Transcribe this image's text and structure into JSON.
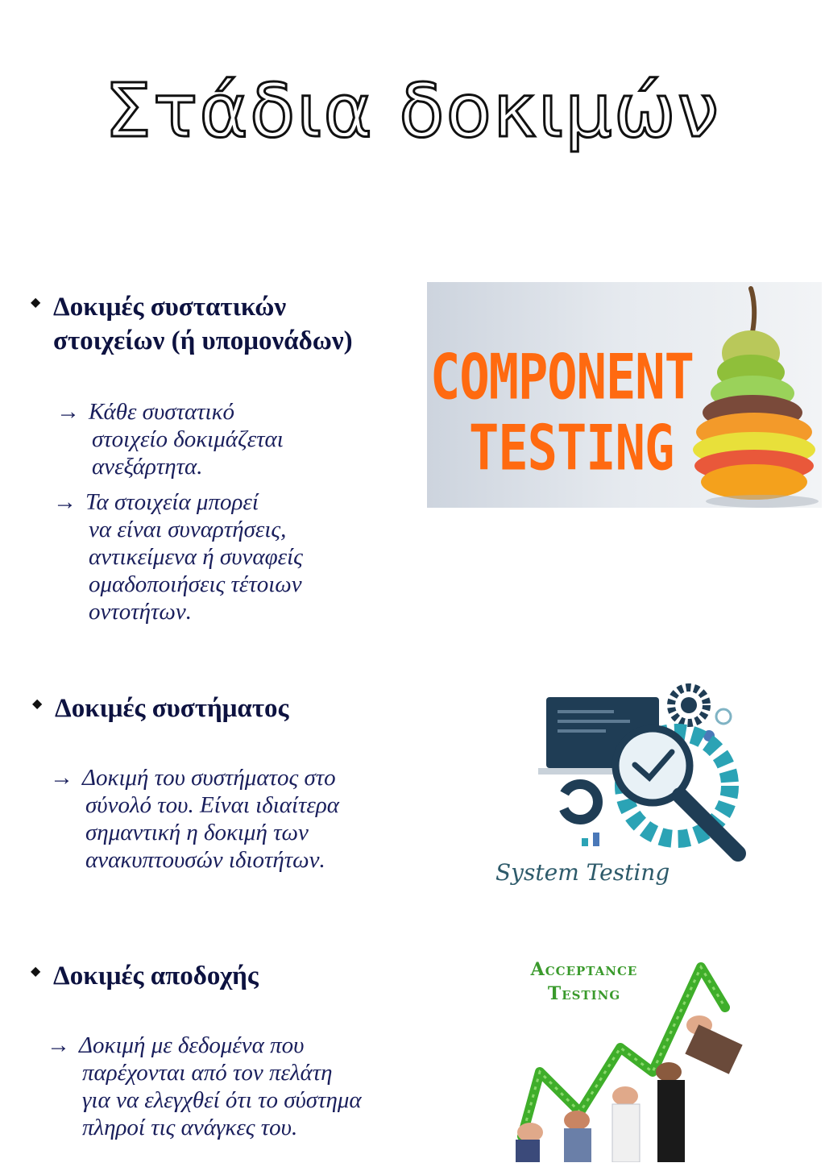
{
  "title": "Στάδια δοκιμών",
  "sections": [
    {
      "heading_lines": [
        "Δοκιμές συστατικών",
        "στοιχείων (ή υπομονάδων)"
      ],
      "items": [
        {
          "arrow": "→",
          "lines": [
            "Κάθε συστατικό",
            "στοιχείο δοκιμάζεται",
            "ανεξάρτητα."
          ]
        },
        {
          "arrow": "→",
          "lines": [
            "Τα στοιχεία μπορεί",
            "να είναι συναρτήσεις,",
            "αντικείμενα ή συναφείς",
            "ομαδοποιήσεις τέτοιων",
            "οντοτήτων."
          ]
        }
      ],
      "image": {
        "line1": "COMPONENT",
        "line2": "TESTING",
        "accent": "#ff6a10"
      }
    },
    {
      "heading_lines": [
        "Δοκιμές συστήματος"
      ],
      "items": [
        {
          "arrow": "→",
          "lines": [
            "Δοκιμή του συστήματος στο",
            "σύνολό του. Είναι ιδιαίτερα",
            "σημαντική η δοκιμή των",
            "ανακυπτουσών ιδιοτήτων."
          ]
        }
      ],
      "image": {
        "caption": "System Testing",
        "accent": "#2ba3b5"
      }
    },
    {
      "heading_lines": [
        "Δοκιμές αποδοχής"
      ],
      "items": [
        {
          "arrow": "→",
          "lines": [
            "Δοκιμή με δεδομένα που",
            "παρέχονται από τον πελάτη",
            "για να ελεγχθεί ότι το σύστημα",
            "πληροί τις ανάγκες του."
          ]
        }
      ],
      "image": {
        "line1": "Acceptance",
        "line2": "Testing",
        "accent": "#3fae2a"
      }
    }
  ]
}
